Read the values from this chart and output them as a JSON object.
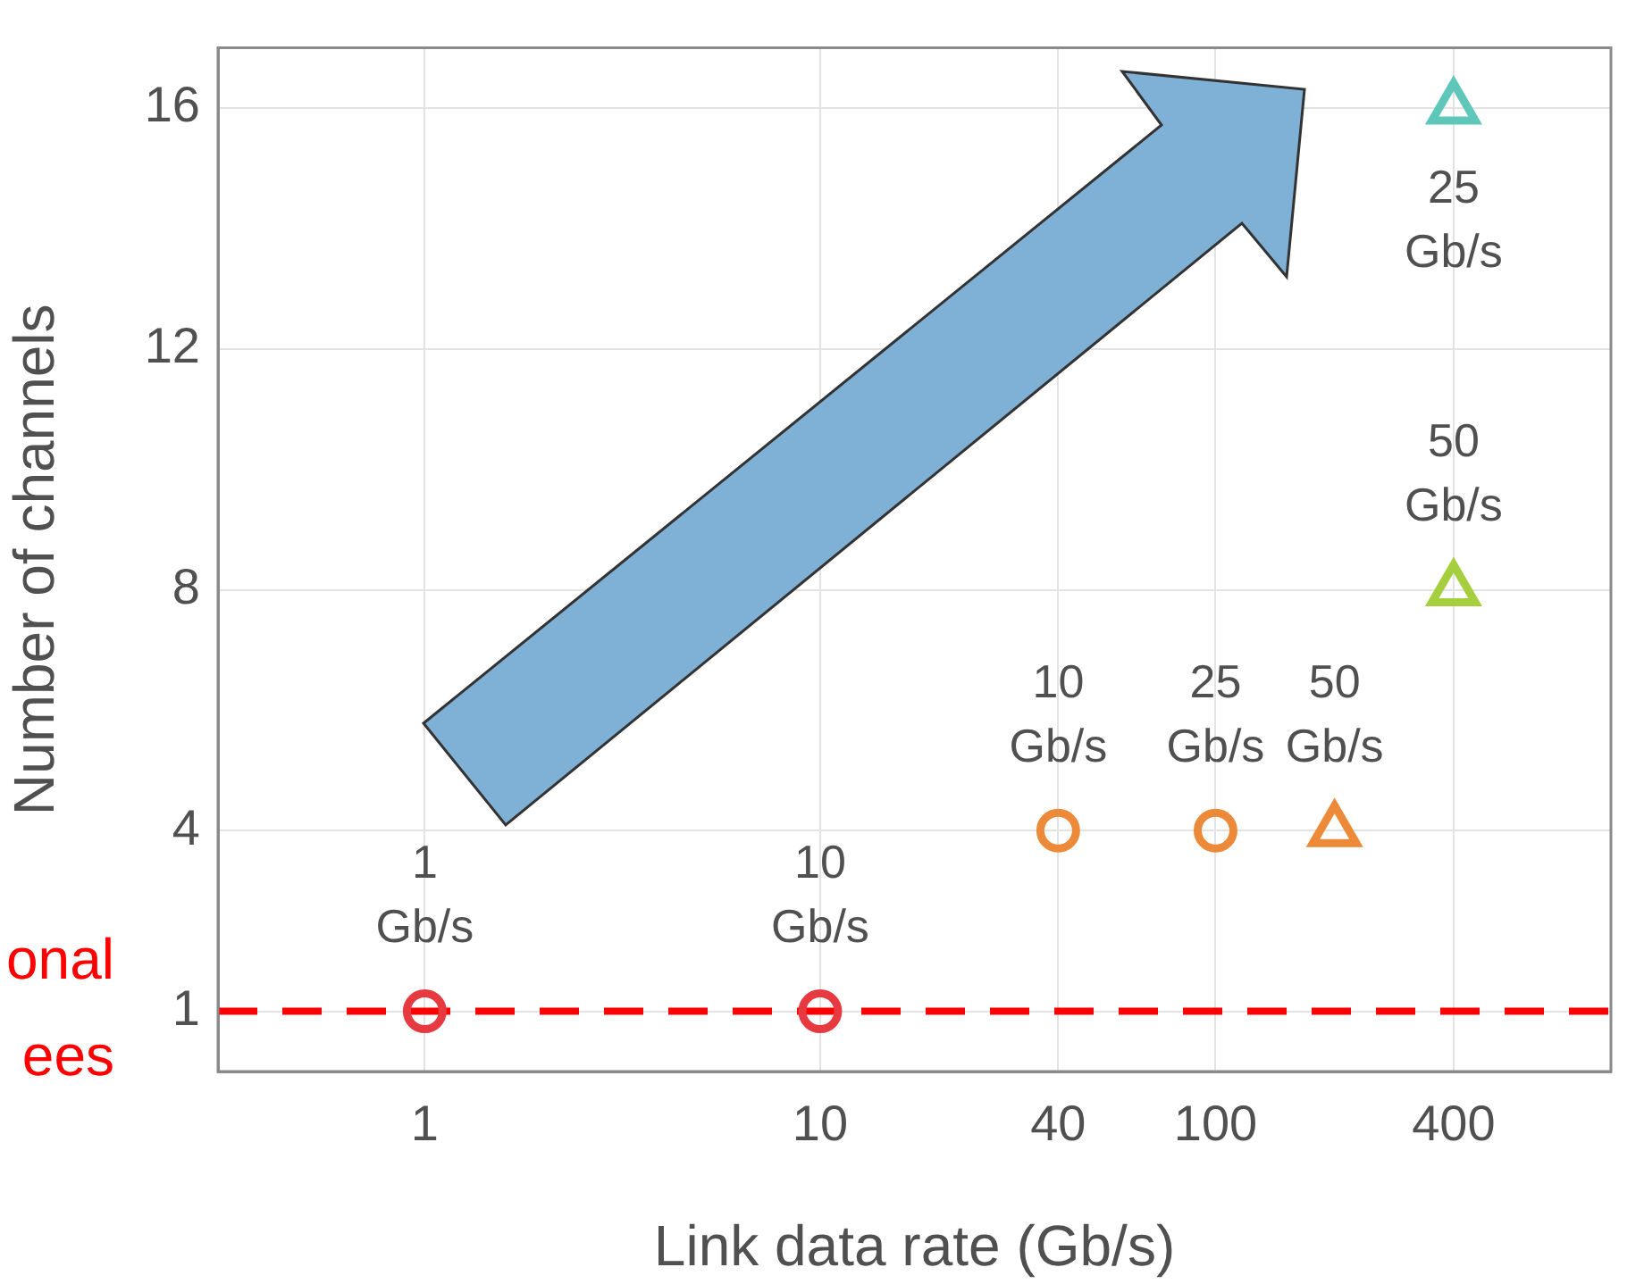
{
  "chart_data": {
    "type": "scatter",
    "xlabel": "Link data rate (Gb/s)",
    "ylabel": "Number of channels",
    "log": "x",
    "xlim": [
      0.3,
      1000
    ],
    "xticks": [
      1,
      10,
      40,
      100,
      400
    ],
    "ylim": [
      0,
      17
    ],
    "yticks": [
      1,
      4,
      8,
      12,
      16
    ],
    "grid": true,
    "series": [
      {
        "marker": "circle",
        "color": "#e63a40",
        "x": [
          1,
          10
        ],
        "values": [
          1,
          1
        ]
      },
      {
        "marker": "circle",
        "color": "#ec8a3a",
        "x": [
          40,
          100
        ],
        "values": [
          4,
          4
        ]
      },
      {
        "marker": "triangle",
        "color": "#ec8a3a",
        "x": [
          200
        ],
        "values": [
          4
        ]
      },
      {
        "marker": "triangle",
        "color": "#a5cf3e",
        "x": [
          400
        ],
        "values": [
          8
        ]
      },
      {
        "marker": "triangle",
        "color": "#5fc7b9",
        "x": [
          400
        ],
        "values": [
          16
        ]
      }
    ],
    "ref_lines": [
      {
        "axis": "y",
        "value": 1,
        "label": "onal\nees",
        "color": "#ff0000",
        "line_style": "dashed"
      }
    ],
    "annotations": [
      {
        "text": "1\nGb/s",
        "x": 1,
        "y": 1
      },
      {
        "text": "10\nGb/s",
        "x": 10,
        "y": 1
      },
      {
        "text": "10\nGb/s",
        "x": 40,
        "y": 4
      },
      {
        "text": "25\nGb/s",
        "x": 100,
        "y": 4
      },
      {
        "text": "50\nGb/s",
        "x": 200,
        "y": 4
      },
      {
        "text": "50\nGb/s",
        "x": 400,
        "y": 8
      },
      {
        "text": "25\nGb/s",
        "x": 400,
        "y": 16
      }
    ]
  }
}
